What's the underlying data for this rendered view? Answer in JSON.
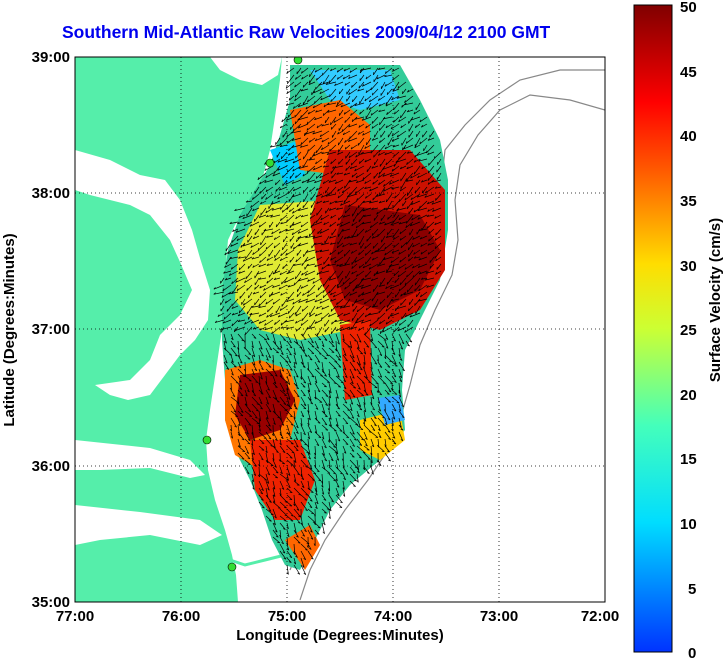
{
  "title": "Southern Mid-Atlantic Raw Velocities 2009/04/12 2100 GMT",
  "axes": {
    "xlabel": "Longitude (Degrees:Minutes)",
    "ylabel": "Latitude (Degrees:Minutes)",
    "x_ticks": [
      "77:00",
      "76:00",
      "75:00",
      "74:00",
      "73:00",
      "72:00"
    ],
    "y_ticks": [
      "39:00",
      "38:00",
      "37:00",
      "36:00",
      "35:00"
    ],
    "x_range": [
      -77,
      -72
    ],
    "y_range": [
      35,
      39
    ],
    "grid": "dotted"
  },
  "colorbar": {
    "label": "Surface Velocity (cm/s)",
    "ticks": [
      "50",
      "45",
      "40",
      "35",
      "30",
      "25",
      "20",
      "15",
      "10",
      "5",
      "0"
    ],
    "range": [
      0,
      50
    ],
    "colormap": "jet"
  },
  "colors": {
    "land": "#55eeaa",
    "title": "#0000ee",
    "station": "#33dd33",
    "vector": "#000000"
  }
}
